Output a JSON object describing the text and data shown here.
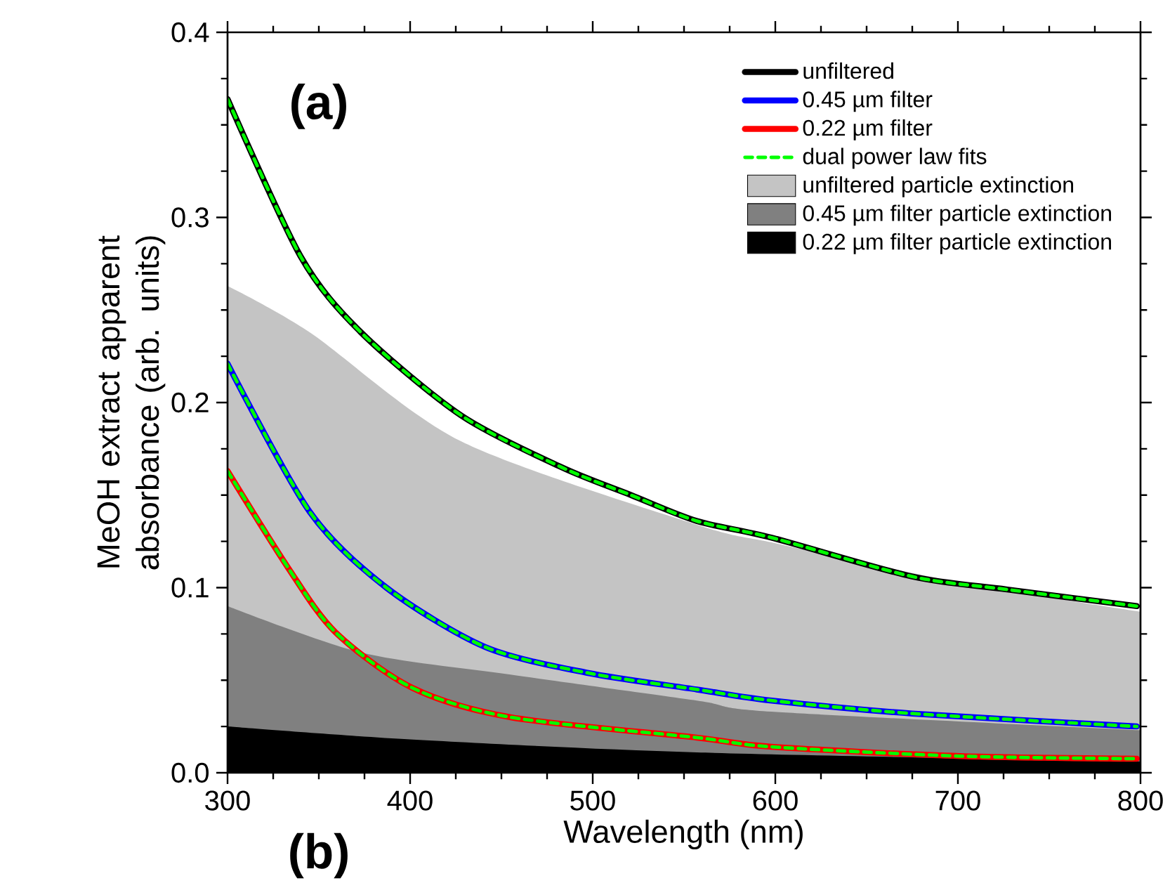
{
  "chart_data": {
    "type": "line",
    "xlabel": "Wavelength (nm)",
    "ylabel": "MeOH extract apparent absorbance (arb. units)",
    "xlim": [
      300,
      800
    ],
    "ylim": [
      0,
      0.4
    ],
    "xticks": [
      300,
      400,
      500,
      600,
      700,
      800
    ],
    "yticks": [
      {
        "value": 0,
        "label": "0.0"
      },
      0.1,
      0.2,
      0.3,
      0.4
    ],
    "legend": "top right",
    "annotations": [
      "(a)",
      "(b)"
    ],
    "series": [
      {
        "name": "unfiltered",
        "color": "#000000",
        "line_style": "solid",
        "x": [
          300,
          340,
          373,
          428,
          483,
          521,
          557,
          598,
          675,
          727,
          798
        ],
        "values": [
          0.364,
          0.279,
          0.238,
          0.193,
          0.165,
          0.15,
          0.136,
          0.127,
          0.106,
          0.099,
          0.09
        ]
      },
      {
        "name": "0.45 µm filter",
        "color": "#0000ff",
        "line_style": "solid",
        "x": [
          300,
          345,
          387,
          441,
          497,
          557,
          598,
          675,
          798
        ],
        "values": [
          0.221,
          0.141,
          0.1,
          0.068,
          0.054,
          0.045,
          0.039,
          0.032,
          0.025
        ]
      },
      {
        "name": "0.22 µm filter",
        "color": "#ff0000",
        "line_style": "solid",
        "x": [
          300,
          333,
          359,
          401,
          455,
          557,
          598,
          701,
          798
        ],
        "values": [
          0.163,
          0.111,
          0.076,
          0.046,
          0.03,
          0.019,
          0.014,
          0.009,
          0.0076
        ]
      },
      {
        "name": "dual power law fits",
        "color": "#00ff00",
        "line_style": "dashed",
        "x": [
          300,
          340,
          373,
          428,
          483,
          521,
          557,
          598,
          675,
          727,
          798
        ],
        "values": [
          0.364,
          0.279,
          0.238,
          0.193,
          0.165,
          0.15,
          0.136,
          0.127,
          0.106,
          0.099,
          0.09
        ]
      },
      {
        "color": "#00ff00",
        "line_style": "dashed",
        "x": [
          300,
          345,
          387,
          441,
          497,
          557,
          598,
          675,
          798
        ],
        "values": [
          0.221,
          0.141,
          0.1,
          0.068,
          0.054,
          0.045,
          0.039,
          0.032,
          0.025
        ]
      },
      {
        "color": "#00ff00",
        "line_style": "dashed",
        "x": [
          300,
          333,
          359,
          401,
          455,
          557,
          598,
          701,
          798
        ],
        "values": [
          0.163,
          0.111,
          0.076,
          0.046,
          0.03,
          0.019,
          0.014,
          0.009,
          0.0076
        ]
      },
      {
        "name": "unfiltered particle extinction",
        "type": "area",
        "color": "#c4c4c4",
        "x": [
          300,
          345,
          428,
          557,
          600,
          700,
          800
        ],
        "values": [
          0.263,
          0.238,
          0.179,
          0.134,
          0.124,
          0.103,
          0.087
        ]
      },
      {
        "name": "0.45 µm filter particle extinction",
        "type": "area",
        "color": "#808080",
        "x": [
          300,
          373,
          455,
          557,
          598,
          800
        ],
        "values": [
          0.09,
          0.065,
          0.053,
          0.039,
          0.033,
          0.023
        ]
      },
      {
        "name": "0.22 µm filter particle extinction",
        "type": "area",
        "color": "#000000",
        "x": [
          300,
          400,
          557,
          800
        ],
        "values": [
          0.025,
          0.018,
          0.011,
          0.006
        ]
      }
    ]
  }
}
